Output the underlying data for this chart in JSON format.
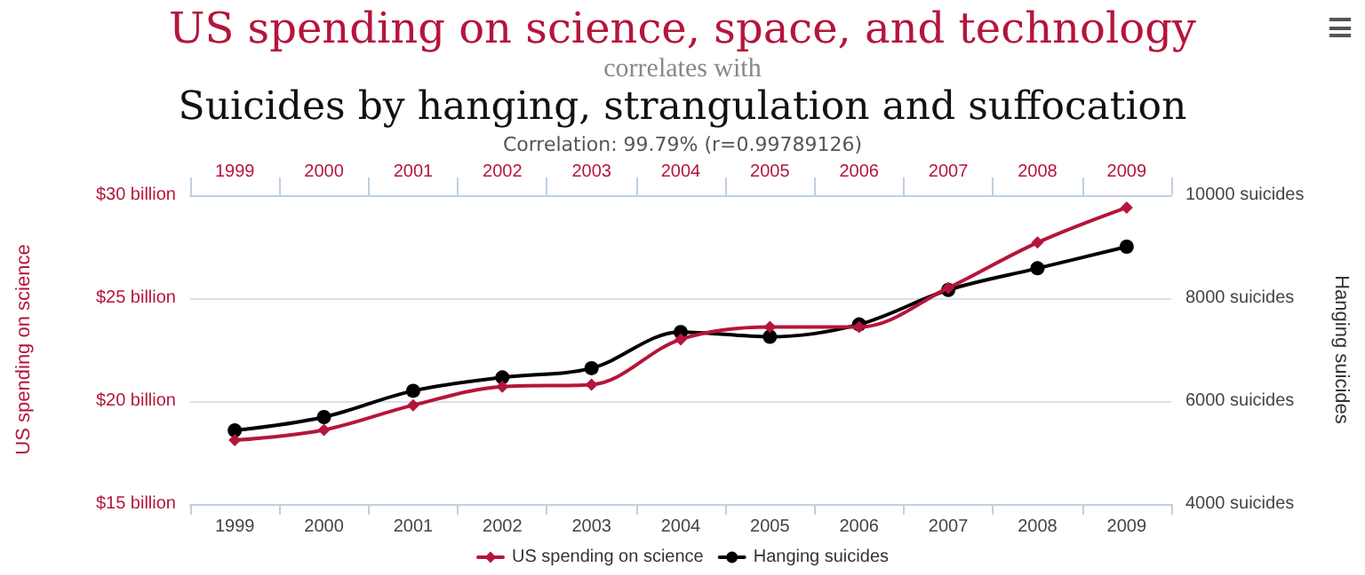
{
  "chart_data": {
    "type": "line",
    "title": "US spending on science, space, and technology",
    "subtitle": "correlates with",
    "annotations": [
      "Suicides by hanging, strangulation and suffocation",
      "Correlation: 99.79% (r=0.99789126)"
    ],
    "categories": [
      "1999",
      "2000",
      "2001",
      "2002",
      "2003",
      "2004",
      "2005",
      "2006",
      "2007",
      "2008",
      "2009"
    ],
    "ylabel": "US spending on science",
    "y2label": "Hanging suicides",
    "ylim": [
      15,
      30
    ],
    "yticks": [
      {
        "value": 15,
        "label": "$15 billion"
      },
      {
        "value": 20,
        "label": "$20 billion"
      },
      {
        "value": 25,
        "label": "$25 billion"
      },
      {
        "value": 30,
        "label": "$30 billion"
      }
    ],
    "y2lim": [
      4000,
      10000
    ],
    "y2ticks": [
      {
        "value": 4000,
        "label": "4000 suicides"
      },
      {
        "value": 6000,
        "label": "6000 suicides"
      },
      {
        "value": 8000,
        "label": "8000 suicides"
      },
      {
        "value": 10000,
        "label": "10000 suicides"
      }
    ],
    "series": [
      {
        "name": "US spending on science",
        "color": "#b5153a",
        "marker": "diamond",
        "values": [
          18.1,
          18.6,
          19.8,
          20.7,
          20.8,
          23.0,
          23.6,
          23.6,
          25.5,
          27.7,
          29.4
        ]
      },
      {
        "name": "Hanging suicides",
        "color": "#000000",
        "marker": "circle",
        "axis": "y2",
        "values": [
          5430,
          5690,
          6200,
          6460,
          6640,
          7340,
          7250,
          7490,
          8160,
          8580,
          9000
        ]
      }
    ],
    "grid": "y",
    "legend": "bottom",
    "line_style": "solid"
  }
}
